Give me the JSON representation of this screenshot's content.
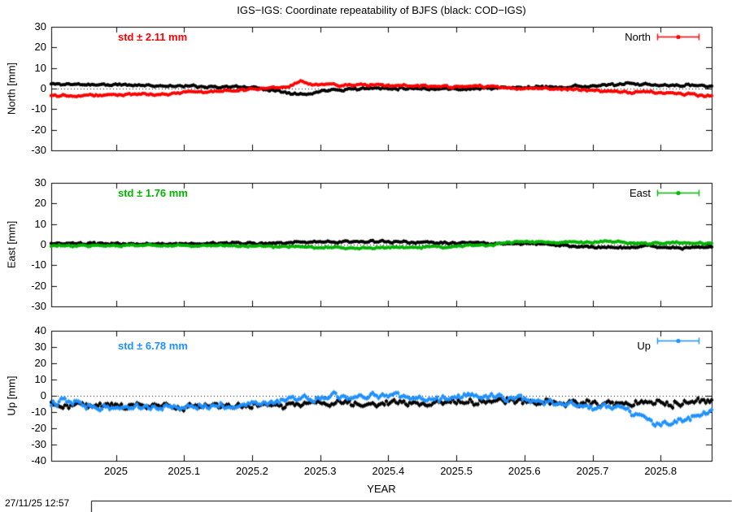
{
  "title": "IGS−IGS: Coordinate repeatability of BJFS (black: COD−IGS)",
  "timestamp": "27/11/25 12:57",
  "xlabel": "YEAR",
  "chart_data": {
    "type": "line",
    "style": "linespoints-with-errorbars",
    "x_range": [
      2024.905,
      2025.875
    ],
    "x_ticks": [
      {
        "value": 2025.0,
        "label": "2025"
      },
      {
        "value": 2025.1,
        "label": "2025.1"
      },
      {
        "value": 2025.2,
        "label": "2025.2"
      },
      {
        "value": 2025.3,
        "label": "2025.3"
      },
      {
        "value": 2025.4,
        "label": "2025.4"
      },
      {
        "value": 2025.5,
        "label": "2025.5"
      },
      {
        "value": 2025.6,
        "label": "2025.6"
      },
      {
        "value": 2025.7,
        "label": "2025.7"
      },
      {
        "value": 2025.8,
        "label": "2025.8"
      }
    ],
    "n_points": 340,
    "panels": [
      {
        "name": "North",
        "ylabel": "North [mm]",
        "ylim": [
          -30,
          30
        ],
        "yticks": [
          {
            "value": 30,
            "label": "30"
          },
          {
            "value": 20,
            "label": "20"
          },
          {
            "value": 10,
            "label": "10"
          },
          {
            "value": 0,
            "label": "0"
          },
          {
            "value": -10,
            "label": "-10"
          },
          {
            "value": -20,
            "label": "-20"
          },
          {
            "value": -30,
            "label": "-30"
          }
        ],
        "std_label": "std ± 2.11 mm",
        "std_value_mm": 2.11,
        "legend": "North",
        "color": "#ff0000",
        "series": [
          {
            "name": "COD−IGS",
            "color": "#000000",
            "seed": 11,
            "noise": 1.1,
            "ebar_mm": 0.8,
            "control_points": [
              [
                2024.905,
                2.2
              ],
              [
                2025.0,
                1.8
              ],
              [
                2025.1,
                1.2
              ],
              [
                2025.2,
                0.6
              ],
              [
                2025.26,
                -2.0
              ],
              [
                2025.28,
                -3.0
              ],
              [
                2025.31,
                -0.5
              ],
              [
                2025.4,
                0.3
              ],
              [
                2025.5,
                -0.2
              ],
              [
                2025.6,
                0.5
              ],
              [
                2025.7,
                1.2
              ],
              [
                2025.75,
                2.2
              ],
              [
                2025.8,
                1.5
              ],
              [
                2025.875,
                1.6
              ]
            ]
          },
          {
            "name": "IGS−IGS",
            "color": "#ff0000",
            "seed": 22,
            "noise": 1.1,
            "ebar_mm": 0.8,
            "control_points": [
              [
                2024.905,
                -3.2
              ],
              [
                2025.0,
                -3.0
              ],
              [
                2025.05,
                -2.8
              ],
              [
                2025.1,
                -2.0
              ],
              [
                2025.15,
                -1.2
              ],
              [
                2025.2,
                -0.5
              ],
              [
                2025.25,
                0.8
              ],
              [
                2025.27,
                3.0
              ],
              [
                2025.3,
                2.0
              ],
              [
                2025.35,
                1.8
              ],
              [
                2025.4,
                1.5
              ],
              [
                2025.45,
                1.2
              ],
              [
                2025.5,
                0.8
              ],
              [
                2025.55,
                1.0
              ],
              [
                2025.6,
                0.2
              ],
              [
                2025.65,
                -0.5
              ],
              [
                2025.7,
                -1.0
              ],
              [
                2025.75,
                -1.5
              ],
              [
                2025.8,
                -2.2
              ],
              [
                2025.875,
                -3.2
              ]
            ]
          }
        ]
      },
      {
        "name": "East",
        "ylabel": "East [mm]",
        "ylim": [
          -30,
          30
        ],
        "yticks": [
          {
            "value": 30,
            "label": "30"
          },
          {
            "value": 20,
            "label": "20"
          },
          {
            "value": 10,
            "label": "10"
          },
          {
            "value": 0,
            "label": "0"
          },
          {
            "value": -10,
            "label": "-10"
          },
          {
            "value": -20,
            "label": "-20"
          },
          {
            "value": -30,
            "label": "-30"
          }
        ],
        "std_label": "std ± 1.76 mm",
        "std_value_mm": 1.76,
        "legend": "East",
        "color": "#00b400",
        "series": [
          {
            "name": "COD−IGS",
            "color": "#000000",
            "seed": 33,
            "noise": 1.0,
            "ebar_mm": 0.8,
            "control_points": [
              [
                2024.905,
                0.4
              ],
              [
                2025.05,
                0.3
              ],
              [
                2025.15,
                0.5
              ],
              [
                2025.25,
                0.8
              ],
              [
                2025.35,
                1.4
              ],
              [
                2025.45,
                1.2
              ],
              [
                2025.55,
                0.6
              ],
              [
                2025.6,
                0.4
              ],
              [
                2025.65,
                -0.2
              ],
              [
                2025.7,
                -1.2
              ],
              [
                2025.74,
                -1.6
              ],
              [
                2025.78,
                -0.6
              ],
              [
                2025.83,
                -1.8
              ],
              [
                2025.875,
                -1.0
              ]
            ]
          },
          {
            "name": "IGS−IGS",
            "color": "#00b400",
            "seed": 44,
            "noise": 1.0,
            "ebar_mm": 0.8,
            "control_points": [
              [
                2024.905,
                -0.6
              ],
              [
                2025.05,
                -0.4
              ],
              [
                2025.15,
                -0.6
              ],
              [
                2025.25,
                -1.0
              ],
              [
                2025.35,
                -1.6
              ],
              [
                2025.45,
                -1.2
              ],
              [
                2025.55,
                -0.2
              ],
              [
                2025.6,
                1.8
              ],
              [
                2025.63,
                1.2
              ],
              [
                2025.68,
                1.0
              ],
              [
                2025.72,
                1.4
              ],
              [
                2025.78,
                0.6
              ],
              [
                2025.82,
                0.8
              ],
              [
                2025.875,
                0.4
              ]
            ]
          }
        ]
      },
      {
        "name": "Up",
        "ylabel": "Up [mm]",
        "ylim": [
          -40,
          40
        ],
        "yticks": [
          {
            "value": 40,
            "label": "40"
          },
          {
            "value": 30,
            "label": "30"
          },
          {
            "value": 20,
            "label": "20"
          },
          {
            "value": 10,
            "label": "10"
          },
          {
            "value": 0,
            "label": "0"
          },
          {
            "value": -10,
            "label": "-10"
          },
          {
            "value": -20,
            "label": "-20"
          },
          {
            "value": -30,
            "label": "-30"
          },
          {
            "value": -40,
            "label": "-40"
          }
        ],
        "std_label": "std ± 6.78 mm",
        "std_value_mm": 6.78,
        "legend": "Up",
        "color": "#1e90ff",
        "series": [
          {
            "name": "COD−IGS",
            "color": "#000000",
            "seed": 55,
            "noise": 3.8,
            "ebar_mm": 1.5,
            "control_points": [
              [
                2024.905,
                -5
              ],
              [
                2025.0,
                -6
              ],
              [
                2025.1,
                -6.5
              ],
              [
                2025.2,
                -6
              ],
              [
                2025.3,
                -4.5
              ],
              [
                2025.4,
                -5
              ],
              [
                2025.5,
                -4
              ],
              [
                2025.58,
                -3
              ],
              [
                2025.65,
                -4
              ],
              [
                2025.72,
                -5
              ],
              [
                2025.8,
                -4.5
              ],
              [
                2025.875,
                -4
              ]
            ]
          },
          {
            "name": "IGS−IGS",
            "color": "#1e90ff",
            "seed": 66,
            "noise": 3.8,
            "ebar_mm": 1.5,
            "control_points": [
              [
                2024.905,
                -4
              ],
              [
                2024.93,
                -2
              ],
              [
                2024.96,
                -7
              ],
              [
                2025.0,
                -6
              ],
              [
                2025.05,
                -7.5
              ],
              [
                2025.1,
                -6
              ],
              [
                2025.15,
                -7
              ],
              [
                2025.2,
                -5
              ],
              [
                2025.25,
                -2
              ],
              [
                2025.3,
                -0.5
              ],
              [
                2025.35,
                -1.5
              ],
              [
                2025.4,
                0
              ],
              [
                2025.45,
                -2
              ],
              [
                2025.5,
                -1
              ],
              [
                2025.55,
                0.5
              ],
              [
                2025.58,
                -1
              ],
              [
                2025.62,
                -3
              ],
              [
                2025.66,
                -5
              ],
              [
                2025.7,
                -7
              ],
              [
                2025.74,
                -8
              ],
              [
                2025.77,
                -11
              ],
              [
                2025.79,
                -16
              ],
              [
                2025.81,
                -18
              ],
              [
                2025.83,
                -16
              ],
              [
                2025.85,
                -12
              ],
              [
                2025.875,
                -10
              ]
            ]
          }
        ]
      }
    ]
  }
}
